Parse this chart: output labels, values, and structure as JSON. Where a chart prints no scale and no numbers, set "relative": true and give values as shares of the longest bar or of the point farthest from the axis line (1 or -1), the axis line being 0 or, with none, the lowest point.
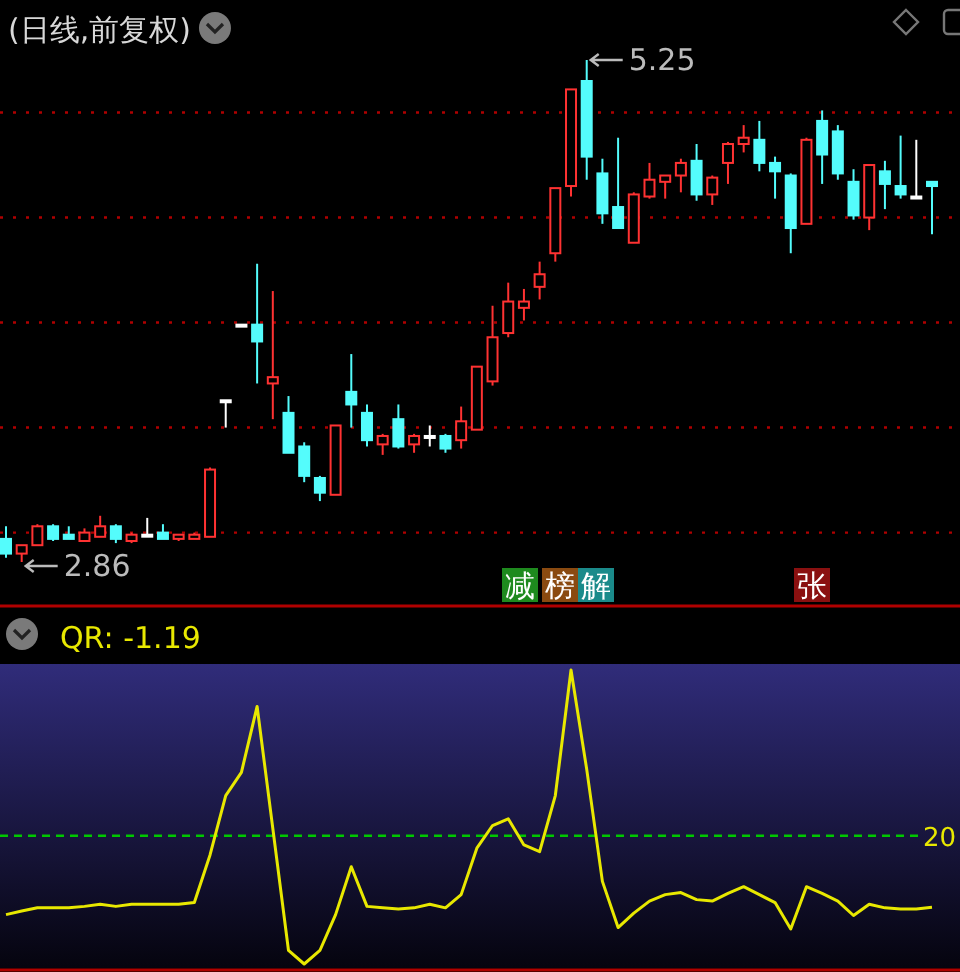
{
  "chart_data": [
    {
      "type": "candlestick",
      "title": "(日线,前复权)",
      "categories": [
        null,
        null,
        null,
        null,
        null,
        null,
        null,
        null,
        null,
        null,
        null,
        null,
        null,
        null,
        null,
        null,
        null,
        null,
        null,
        null,
        null,
        null,
        null,
        null,
        null,
        null,
        null,
        null,
        null,
        null,
        null,
        null,
        null,
        null,
        null,
        null,
        null,
        null,
        null,
        null,
        null,
        null,
        null,
        null,
        null,
        null,
        null,
        null,
        null,
        null,
        null,
        null,
        null,
        null,
        null,
        null,
        null,
        null,
        null,
        null
      ],
      "ohlc": [
        [
          2.97,
          3.03,
          2.88,
          2.9
        ],
        [
          2.9,
          2.94,
          2.86,
          2.94
        ],
        [
          2.94,
          3.04,
          2.94,
          3.03
        ],
        [
          3.03,
          3.04,
          2.96,
          2.97
        ],
        [
          2.99,
          3.03,
          2.97,
          2.97
        ],
        [
          2.96,
          3.02,
          2.96,
          3.0
        ],
        [
          2.98,
          3.08,
          2.98,
          3.03
        ],
        [
          3.03,
          3.04,
          2.95,
          2.97
        ],
        [
          2.96,
          3.0,
          2.95,
          2.99
        ],
        [
          2.99,
          3.07,
          2.99,
          2.99
        ],
        [
          3.0,
          3.04,
          2.97,
          2.97
        ],
        [
          2.97,
          2.99,
          2.96,
          2.99
        ],
        [
          2.97,
          3.0,
          2.97,
          2.99
        ],
        [
          2.98,
          3.31,
          2.98,
          3.3
        ],
        [
          3.63,
          3.63,
          3.5,
          3.63
        ],
        [
          3.99,
          3.99,
          3.99,
          3.99
        ],
        [
          3.99,
          4.28,
          3.71,
          3.91
        ],
        [
          3.71,
          4.15,
          3.54,
          3.74
        ],
        [
          3.57,
          3.65,
          3.38,
          3.38
        ],
        [
          3.41,
          3.43,
          3.24,
          3.27
        ],
        [
          3.26,
          3.27,
          3.15,
          3.19
        ],
        [
          3.18,
          3.51,
          3.18,
          3.51
        ],
        [
          3.67,
          3.85,
          3.5,
          3.61
        ],
        [
          3.57,
          3.61,
          3.41,
          3.44
        ],
        [
          3.42,
          3.47,
          3.37,
          3.46
        ],
        [
          3.54,
          3.61,
          3.4,
          3.41
        ],
        [
          3.42,
          3.47,
          3.38,
          3.46
        ],
        [
          3.46,
          3.51,
          3.41,
          3.46
        ],
        [
          3.46,
          3.47,
          3.38,
          3.4
        ],
        [
          3.44,
          3.6,
          3.4,
          3.53
        ],
        [
          3.49,
          3.79,
          3.49,
          3.79
        ],
        [
          3.72,
          4.08,
          3.7,
          3.93
        ],
        [
          3.95,
          4.19,
          3.93,
          4.1
        ],
        [
          4.07,
          4.16,
          4.01,
          4.1
        ],
        [
          4.17,
          4.29,
          4.11,
          4.23
        ],
        [
          4.33,
          4.64,
          4.29,
          4.64
        ],
        [
          4.65,
          5.11,
          4.6,
          5.11
        ],
        [
          5.15,
          5.25,
          4.68,
          4.79
        ],
        [
          4.71,
          4.78,
          4.47,
          4.52
        ],
        [
          4.55,
          4.88,
          4.45,
          4.45
        ],
        [
          4.38,
          4.62,
          4.38,
          4.61
        ],
        [
          4.6,
          4.76,
          4.59,
          4.68
        ],
        [
          4.67,
          4.7,
          4.59,
          4.7
        ],
        [
          4.7,
          4.78,
          4.62,
          4.76
        ],
        [
          4.77,
          4.85,
          4.58,
          4.61
        ],
        [
          4.61,
          4.7,
          4.56,
          4.69
        ],
        [
          4.76,
          4.86,
          4.66,
          4.85
        ],
        [
          4.85,
          4.94,
          4.81,
          4.88
        ],
        [
          4.87,
          4.96,
          4.72,
          4.76
        ],
        [
          4.76,
          4.79,
          4.59,
          4.72
        ],
        [
          4.7,
          4.71,
          4.33,
          4.45
        ],
        [
          4.47,
          4.88,
          4.47,
          4.87
        ],
        [
          4.96,
          5.01,
          4.66,
          4.8
        ],
        [
          4.91,
          4.94,
          4.68,
          4.71
        ],
        [
          4.67,
          4.73,
          4.49,
          4.51
        ],
        [
          4.5,
          4.75,
          4.44,
          4.75
        ],
        [
          4.72,
          4.77,
          4.54,
          4.66
        ],
        [
          4.65,
          4.89,
          4.59,
          4.61
        ],
        [
          4.6,
          4.87,
          4.59,
          4.6
        ],
        [
          4.67,
          4.67,
          4.42,
          4.65
        ]
      ],
      "colors": [
        "#54fcfc",
        "#ff3232",
        "#ff3232",
        "#54fcfc",
        "#54fcfc",
        "#ff3232",
        "#ff3232",
        "#54fcfc",
        "#ff3232",
        "#ffffff",
        "#54fcfc",
        "#ff3232",
        "#ff3232",
        "#ff3232",
        "#ffffff",
        "#ffffff",
        "#54fcfc",
        "#ff3232",
        "#54fcfc",
        "#54fcfc",
        "#54fcfc",
        "#ff3232",
        "#54fcfc",
        "#54fcfc",
        "#ff3232",
        "#54fcfc",
        "#ff3232",
        "#ffffff",
        "#54fcfc",
        "#ff3232",
        "#ff3232",
        "#ff3232",
        "#ff3232",
        "#ff3232",
        "#ff3232",
        "#ff3232",
        "#ff3232",
        "#54fcfc",
        "#54fcfc",
        "#54fcfc",
        "#ff3232",
        "#ff3232",
        "#ff3232",
        "#ff3232",
        "#54fcfc",
        "#ff3232",
        "#ff3232",
        "#ff3232",
        "#54fcfc",
        "#54fcfc",
        "#54fcfc",
        "#ff3232",
        "#54fcfc",
        "#54fcfc",
        "#54fcfc",
        "#ff3232",
        "#54fcfc",
        "#54fcfc",
        "#ffffff",
        "#54fcfc"
      ],
      "yticks": [
        {
          "value": 3,
          "label": null
        },
        {
          "value": 3.5,
          "label": null
        },
        {
          "value": 4,
          "label": null
        },
        {
          "value": 4.5,
          "label": null
        },
        {
          "value": 5,
          "label": null
        }
      ],
      "grid": "y",
      "annotations": [
        "5.25",
        "2.86",
        "减",
        "榜",
        "解",
        "张"
      ]
    },
    {
      "type": "line",
      "title": "QR: -1.19",
      "relative": true,
      "categories": [
        null,
        null,
        null,
        null,
        null,
        null,
        null,
        null,
        null,
        null,
        null,
        null,
        null,
        null,
        null,
        null,
        null,
        null,
        null,
        null,
        null,
        null,
        null,
        null,
        null,
        null,
        null,
        null,
        null,
        null,
        null,
        null,
        null,
        null,
        null,
        null,
        null,
        null,
        null,
        null,
        null,
        null,
        null,
        null,
        null,
        null,
        null,
        null,
        null,
        null,
        null,
        null,
        null,
        null,
        null,
        null,
        null,
        null,
        null,
        null
      ],
      "series": [
        {
          "color": "#e8e800",
          "values": [
            0.168,
            0.18,
            0.191,
            0.191,
            0.191,
            0.196,
            0.203,
            0.196,
            0.203,
            0.203,
            0.203,
            0.203,
            0.209,
            0.371,
            0.573,
            0.652,
            0.876,
            0.461,
            0.046,
            0,
            0.046,
            0.168,
            0.331,
            0.196,
            0.191,
            0.187,
            0.191,
            0.203,
            0.191,
            0.236,
            0.394,
            0.471,
            0.494,
            0.405,
            0.382,
            0.573,
            1,
            0.662,
            0.281,
            0.124,
            0.173,
            0.214,
            0.236,
            0.243,
            0.219,
            0.214,
            0.24,
            0.263,
            0.236,
            0.209,
            0.119,
            0.263,
            0.24,
            0.214,
            0.165,
            0.203,
            0.191,
            0.187,
            0.187,
            0.193
          ]
        }
      ],
      "ref_lines": [
        {
          "axis": "y",
          "value": 0.436,
          "color": "#00c800",
          "line_style": "dashed"
        }
      ],
      "annotations": [
        "20"
      ]
    }
  ]
}
